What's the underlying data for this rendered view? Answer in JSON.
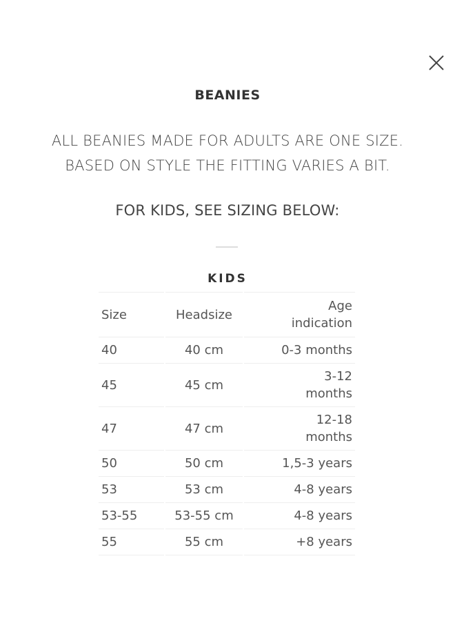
{
  "modal": {
    "close_icon": "close-x-icon",
    "title": "BEANIES",
    "intro_line1": "ALL BEANIES MADE FOR ADULTS ARE ONE SIZE.",
    "intro_line2": "BASED ON STYLE THE FITTING VARIES A BIT.",
    "kids_note": "FOR KIDS, SEE SIZING BELOW:",
    "table_title": "KIDS",
    "headers": [
      "Size",
      "Headsize",
      "Age indication"
    ],
    "rows": [
      [
        "40",
        "40 cm",
        "0-3 months"
      ],
      [
        "45",
        "45 cm",
        "3-12 months"
      ],
      [
        "47",
        "47 cm",
        "12-18 months"
      ],
      [
        "50",
        "50 cm",
        "1,5-3 years"
      ],
      [
        "53",
        "53 cm",
        "4-8 years"
      ],
      [
        "53-55",
        "53-55 cm",
        "4-8 years"
      ],
      [
        "55",
        "55 cm",
        "+8 years"
      ]
    ]
  }
}
